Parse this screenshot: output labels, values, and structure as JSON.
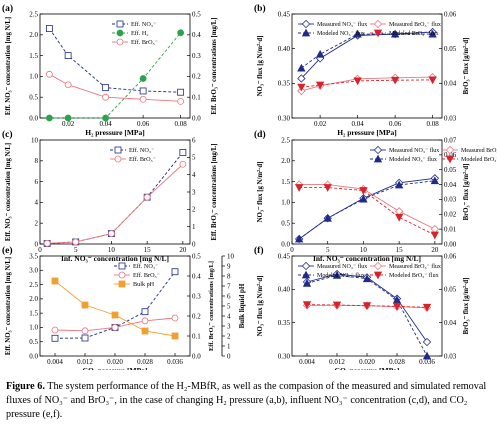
{
  "panels": [
    {
      "letter": "(a)",
      "xlabel": "H₂ pressure [MPa]",
      "ylabel_left": "Eff. NO₃⁻ concentration [mg N/L]",
      "ylabel_right": "Eff. BrO₃⁻ concentrations [mg/L]",
      "legend": [
        "Eff. NO₃⁻",
        "Eff. H₂",
        "Eff. BrO₃⁻"
      ]
    },
    {
      "letter": "(b)",
      "xlabel": "H₂ pressure [MPa]",
      "ylabel_left": "NO₃⁻ flux [g N/m²·d]",
      "ylabel_right": "BrO₃⁻ flux [g/m²·d]",
      "legend": [
        "Measured NO₃⁻ flux",
        "Modeled NO₃⁻ flux",
        "Measured BrO₃⁻ flux",
        "Modeled BrO₃⁻ flux"
      ]
    },
    {
      "letter": "(c)",
      "xlabel": "Inf. NO₃⁻ concentration [mg N/L]",
      "ylabel_left": "Eff. NO₃⁻ concentration [mg N/L]",
      "ylabel_right": "Eff. BrO₃⁻ concentrations [mg/L]",
      "legend": [
        "Eff. NO₃⁻",
        "Eff. BrO₃⁻"
      ]
    },
    {
      "letter": "(d)",
      "xlabel": "Inf. NO₃⁻ concentration [mg N/L]",
      "ylabel_left": "NO₃⁻ flux [g N/m²·d]",
      "ylabel_right": "BrO₃⁻ flux [g/m²·d]",
      "legend": [
        "Measured NO₃⁻ flux",
        "Modeled NO₃⁻ flux",
        "Measured BrO₃⁻ flux",
        "Modeled BrO₃⁻ flux"
      ]
    },
    {
      "letter": "(e)",
      "xlabel": "CO₂ pressure [MPa]",
      "ylabel_left": "Eff. NO₃⁻ concentration [mg N/L]",
      "ylabel_right": "Eff. BrO₃⁻ concentrations [mg/L]",
      "ylabel_right2": "Bulk liquid pH",
      "legend": [
        "Eff. NO₃⁻",
        "Eff. BrO₃⁻",
        "Bulk pH"
      ]
    },
    {
      "letter": "(f)",
      "xlabel": "CO₂ pressure [MPa]",
      "ylabel_left": "NO₃⁻ flux [g N/m²·d]",
      "ylabel_right": "BrO₃⁻ flux [g/m²·d]",
      "legend": [
        "Measured NO₃⁻ flux",
        "Modeled NO₃⁻ flux",
        "Measured BrO₃⁻ flux",
        "Modeled BrO₃⁻ flux"
      ]
    }
  ],
  "caption": {
    "label": "Figure 6.",
    "text": " The system performance of the H₂-MBfR, as well as the compasion of the measured and simulated removal fluxes of NO₃⁻ and BrO₃⁻, in the case of changing H₂ pressure (a,b), influent NO₃⁻ concentration (c,d), and CO₂ pressure (e,f)."
  },
  "colors": {
    "navy": "#1f2a8a",
    "red_light": "#e8777d",
    "red": "#d8232a",
    "green": "#2ca24a",
    "orange": "#f0a030"
  },
  "chart_data": [
    {
      "type": "line",
      "x": [
        0.01,
        0.02,
        0.04,
        0.06,
        0.08
      ],
      "xlim": [
        0.005,
        0.085
      ],
      "xticks": [
        0.02,
        0.04,
        0.06,
        0.08
      ],
      "ylim_left": [
        0,
        2.5
      ],
      "yticks_left": [
        0.0,
        0.5,
        1.0,
        1.5,
        2.0,
        2.5
      ],
      "ylim_right": [
        0,
        0.5
      ],
      "yticks_right": [
        0.0,
        0.1,
        0.2,
        0.3,
        0.4,
        0.5
      ],
      "series": [
        {
          "name": "Eff. NO₃⁻",
          "axis": "left",
          "values": [
            2.15,
            1.5,
            0.73,
            0.65,
            0.62
          ]
        },
        {
          "name": "Eff. H₂",
          "axis": "right",
          "values": [
            0.0,
            0.0,
            0.0,
            0.19,
            0.41
          ]
        },
        {
          "name": "Eff. BrO₃⁻",
          "axis": "right",
          "values": [
            0.21,
            0.16,
            0.1,
            0.09,
            0.08
          ]
        }
      ]
    },
    {
      "type": "line",
      "x": [
        0.01,
        0.02,
        0.04,
        0.06,
        0.08
      ],
      "xlim": [
        0.005,
        0.085
      ],
      "xticks": [
        0.02,
        0.04,
        0.06,
        0.08
      ],
      "ylim_left": [
        0.3,
        0.45
      ],
      "yticks_left": [
        0.3,
        0.35,
        0.4,
        0.45
      ],
      "ylim_right": [
        0.03,
        0.06
      ],
      "yticks_right": [
        0.03,
        0.04,
        0.05,
        0.06
      ],
      "series": [
        {
          "name": "Measured NO₃⁻ flux",
          "axis": "left",
          "values": [
            0.357,
            0.386,
            0.419,
            0.421,
            0.424
          ]
        },
        {
          "name": "Modeled NO₃⁻ flux",
          "axis": "left",
          "values": [
            0.372,
            0.392,
            0.421,
            0.421,
            0.421
          ]
        },
        {
          "name": "Measured BrO₃⁻ flux",
          "axis": "right",
          "values": [
            0.0378,
            0.0393,
            0.0413,
            0.0416,
            0.0418
          ]
        },
        {
          "name": "Modeled BrO₃⁻ flux",
          "axis": "right",
          "values": [
            0.0389,
            0.0395,
            0.0407,
            0.0409,
            0.041
          ]
        }
      ]
    },
    {
      "type": "line",
      "x": [
        1,
        5,
        10,
        15,
        20
      ],
      "xlim": [
        0,
        21
      ],
      "xticks": [
        0,
        5,
        10,
        15,
        20
      ],
      "ylim_left": [
        0,
        10
      ],
      "yticks_left": [
        0,
        2,
        4,
        6,
        8,
        10
      ],
      "ylim_right": [
        0,
        6
      ],
      "yticks_right": [
        0,
        1,
        2,
        3,
        4,
        5,
        6
      ],
      "series": [
        {
          "name": "Eff. NO₃⁻",
          "axis": "left",
          "values": [
            0.05,
            0.2,
            1.0,
            4.5,
            8.8
          ]
        },
        {
          "name": "Eff. BrO₃⁻",
          "axis": "right",
          "values": [
            0.04,
            0.12,
            0.6,
            2.7,
            4.6
          ]
        }
      ]
    },
    {
      "type": "line",
      "x": [
        1,
        5,
        10,
        15,
        20
      ],
      "xlim": [
        0,
        21
      ],
      "xticks": [
        0,
        5,
        10,
        15,
        20
      ],
      "ylim_left": [
        0,
        2.5
      ],
      "yticks_left": [
        0.0,
        0.5,
        1.0,
        1.5,
        2.0,
        2.5
      ],
      "ylim_right": [
        0.0,
        0.07
      ],
      "yticks_right": [
        0.0,
        0.01,
        0.02,
        0.03,
        0.04,
        0.05,
        0.06,
        0.07
      ],
      "series": [
        {
          "name": "Measured NO₃⁻ flux",
          "axis": "left",
          "values": [
            0.12,
            0.62,
            1.1,
            1.47,
            1.58
          ]
        },
        {
          "name": "Modeled NO₃⁻ flux",
          "axis": "left",
          "values": [
            0.12,
            0.62,
            1.08,
            1.42,
            1.52
          ]
        },
        {
          "name": "Measured BrO₃⁻ flux",
          "axis": "right",
          "values": [
            0.04,
            0.04,
            0.037,
            0.022,
            0.01
          ]
        },
        {
          "name": "Modeled BrO₃⁻ flux",
          "axis": "right",
          "values": [
            0.038,
            0.038,
            0.036,
            0.018,
            0.006
          ]
        }
      ]
    },
    {
      "type": "line",
      "x": [
        0.004,
        0.012,
        0.02,
        0.028,
        0.036
      ],
      "xlim": [
        0.0,
        0.04
      ],
      "xticks": [
        0.004,
        0.012,
        0.02,
        0.028,
        0.036
      ],
      "ylim_left": [
        0,
        3.5
      ],
      "yticks_left": [
        0.0,
        0.5,
        1.0,
        1.5,
        2.0,
        2.5,
        3.0,
        3.5
      ],
      "ylim_right": [
        0,
        0.5
      ],
      "yticks_right": [
        0.0,
        0.1,
        0.2,
        0.3,
        0.4,
        0.5
      ],
      "ylim_right2": [
        0,
        10
      ],
      "yticks_right2": [
        0,
        1,
        2,
        3,
        4,
        5,
        6,
        7,
        8,
        9,
        10
      ],
      "series": [
        {
          "name": "Eff. NO₃⁻",
          "axis": "left",
          "values": [
            0.62,
            0.63,
            1.0,
            1.55,
            2.95
          ]
        },
        {
          "name": "Eff. BrO₃⁻",
          "axis": "right",
          "values": [
            0.13,
            0.126,
            0.143,
            0.176,
            0.19
          ]
        },
        {
          "name": "Bulk pH",
          "axis": "right2",
          "values": [
            7.5,
            5.1,
            4.1,
            2.5,
            2.0
          ]
        }
      ]
    },
    {
      "type": "line",
      "x": [
        0.004,
        0.012,
        0.02,
        0.028,
        0.036
      ],
      "xlim": [
        0.0,
        0.04
      ],
      "xticks": [
        0.004,
        0.012,
        0.02,
        0.028,
        0.036
      ],
      "ylim_left": [
        0.3,
        0.45
      ],
      "yticks_left": [
        0.3,
        0.35,
        0.4,
        0.45
      ],
      "ylim_right": [
        0.03,
        0.06
      ],
      "yticks_right": [
        0.03,
        0.04,
        0.05,
        0.06
      ],
      "series": [
        {
          "name": "Measured NO₃⁻ flux",
          "axis": "left",
          "values": [
            0.411,
            0.423,
            0.418,
            0.386,
            0.321
          ]
        },
        {
          "name": "Modeled NO₃⁻ flux",
          "axis": "left",
          "values": [
            0.409,
            0.421,
            0.416,
            0.384,
            0.3
          ]
        },
        {
          "name": "Measured BrO₃⁻ flux",
          "axis": "right",
          "values": [
            0.0452,
            0.0452,
            0.0451,
            0.0448,
            0.0445
          ]
        },
        {
          "name": "Modeled BrO₃⁻ flux",
          "axis": "right",
          "values": [
            0.0454,
            0.0453,
            0.0451,
            0.0449,
            0.0446
          ]
        }
      ]
    }
  ]
}
